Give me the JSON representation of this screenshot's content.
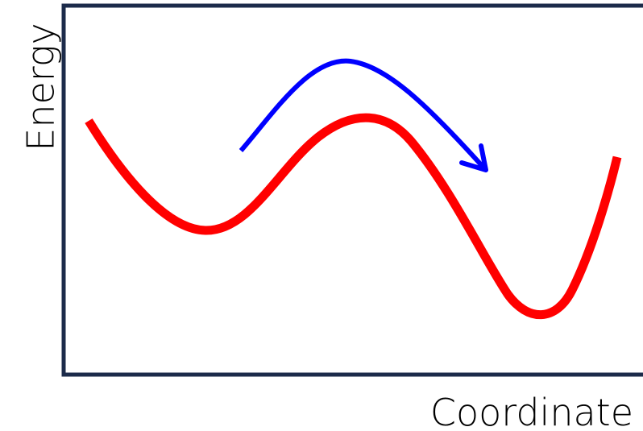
{
  "axes": {
    "y_label": "Energy",
    "x_label": "Coordinate"
  },
  "colors": {
    "frame": "#1c2b4a",
    "energy_curve": "#ff0000",
    "transition_arrow": "#0000ff",
    "text": "#000000"
  },
  "elements": {
    "energy_curve": "double-well energy profile: local minimum, barrier maximum, deeper global minimum",
    "transition_arrow": "curved arrow over the barrier from left well toward right well"
  }
}
